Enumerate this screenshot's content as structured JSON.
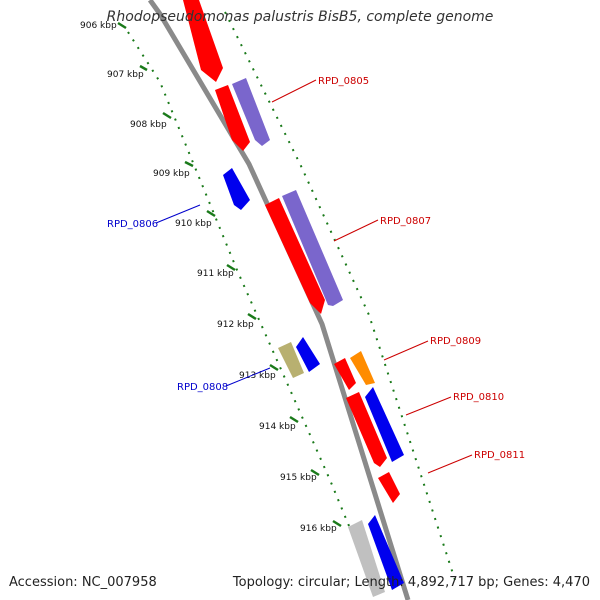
{
  "title": "Rhodopseudomonas palustris BisB5, complete genome",
  "accession": "Accession: NC_007958",
  "stats": "Topology: circular; Length: 4,892,717 bp; Genes: 4,470",
  "colors": {
    "backbone": "#8a8a8a",
    "tick": "#1a7a1a",
    "label_forward": "#cc0000",
    "label_reverse": "#0000cc"
  },
  "kbp_labels": [
    "906 kbp",
    "907 kbp",
    "908 kbp",
    "909 kbp",
    "910 kbp",
    "911 kbp",
    "912 kbp",
    "913 kbp",
    "914 kbp",
    "915 kbp",
    "916 kbp"
  ],
  "genes": [
    {
      "name": "",
      "color": "#ff0000"
    },
    {
      "name": "",
      "color": "#ff0000"
    },
    {
      "name": "RPD_0805",
      "color": "#7a66cc"
    },
    {
      "name": "RPD_0806",
      "color": "#0000ee"
    },
    {
      "name": "",
      "color": "#ff0000"
    },
    {
      "name": "RPD_0807",
      "color": "#7a66cc"
    },
    {
      "name": "RPD_0808",
      "color": "#b8b070"
    },
    {
      "name": "",
      "color": "#0000ee"
    },
    {
      "name": "",
      "color": "#ff0000"
    },
    {
      "name": "RPD_0809",
      "color": "#ff8c00"
    },
    {
      "name": "",
      "color": "#ff0000"
    },
    {
      "name": "RPD_0810",
      "color": "#0000ee"
    },
    {
      "name": "RPD_0811",
      "color": "#ff0000"
    },
    {
      "name": "",
      "color": "#c0c0c0"
    },
    {
      "name": "",
      "color": "#0000ee"
    }
  ]
}
